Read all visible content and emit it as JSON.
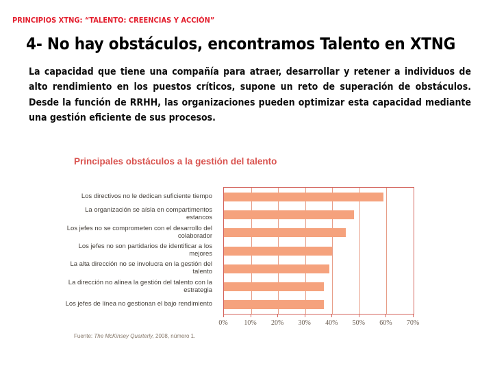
{
  "header": {
    "kicker": "PRINCIPIOS XTNG: “TALENTO: CREENCIAS Y ACCIÓN”",
    "title": "4- No hay obstáculos, encontramos Talento en XTNG"
  },
  "paragraph": "La capacidad que tiene una compañía para atraer, desarrollar y retener a individuos de alto rendimiento en los puestos críticos, supone un reto de superación de obstáculos. Desde la función de RRHH, las organizaciones pueden optimizar esta capacidad mediante una gestión eficiente de sus procesos.",
  "chart_data": {
    "type": "bar",
    "orientation": "horizontal",
    "title": "Principales obstáculos a la gestión del talento",
    "categories": [
      "Los directivos no le dedican suficiente tiempo",
      "La organización se aísla en compartimentos estancos",
      "Los jefes no se comprometen con el desarrollo del colaborador",
      "Los jefes no son partidarios de identificar a los mejores",
      "La alta dirección no se involucra en la gestión del talento",
      "La dirección no alinea la gestión del talento con la estrategia",
      "Los jefes de línea no gestionan el bajo rendimiento"
    ],
    "values": [
      59,
      48,
      45,
      40,
      39,
      37,
      37
    ],
    "unit": "%",
    "xlim": [
      0,
      70
    ],
    "x_ticks": [
      "0%",
      "10%",
      "20%",
      "30%",
      "40%",
      "50%",
      "60%",
      "70%"
    ],
    "grid": "vertical-only",
    "legend": "none",
    "bar_color": "#f5a27d",
    "grid_color": "#e79e88",
    "axis_color": "#d4655e",
    "title_color": "#d9534f"
  },
  "source": {
    "prefix": "Fuente: ",
    "work": "The McKinsey Quarterly,",
    "suffix": " 2008, número 1."
  },
  "colors": {
    "kicker_red": "#e31e2d",
    "text_black": "#0d0d0d"
  }
}
